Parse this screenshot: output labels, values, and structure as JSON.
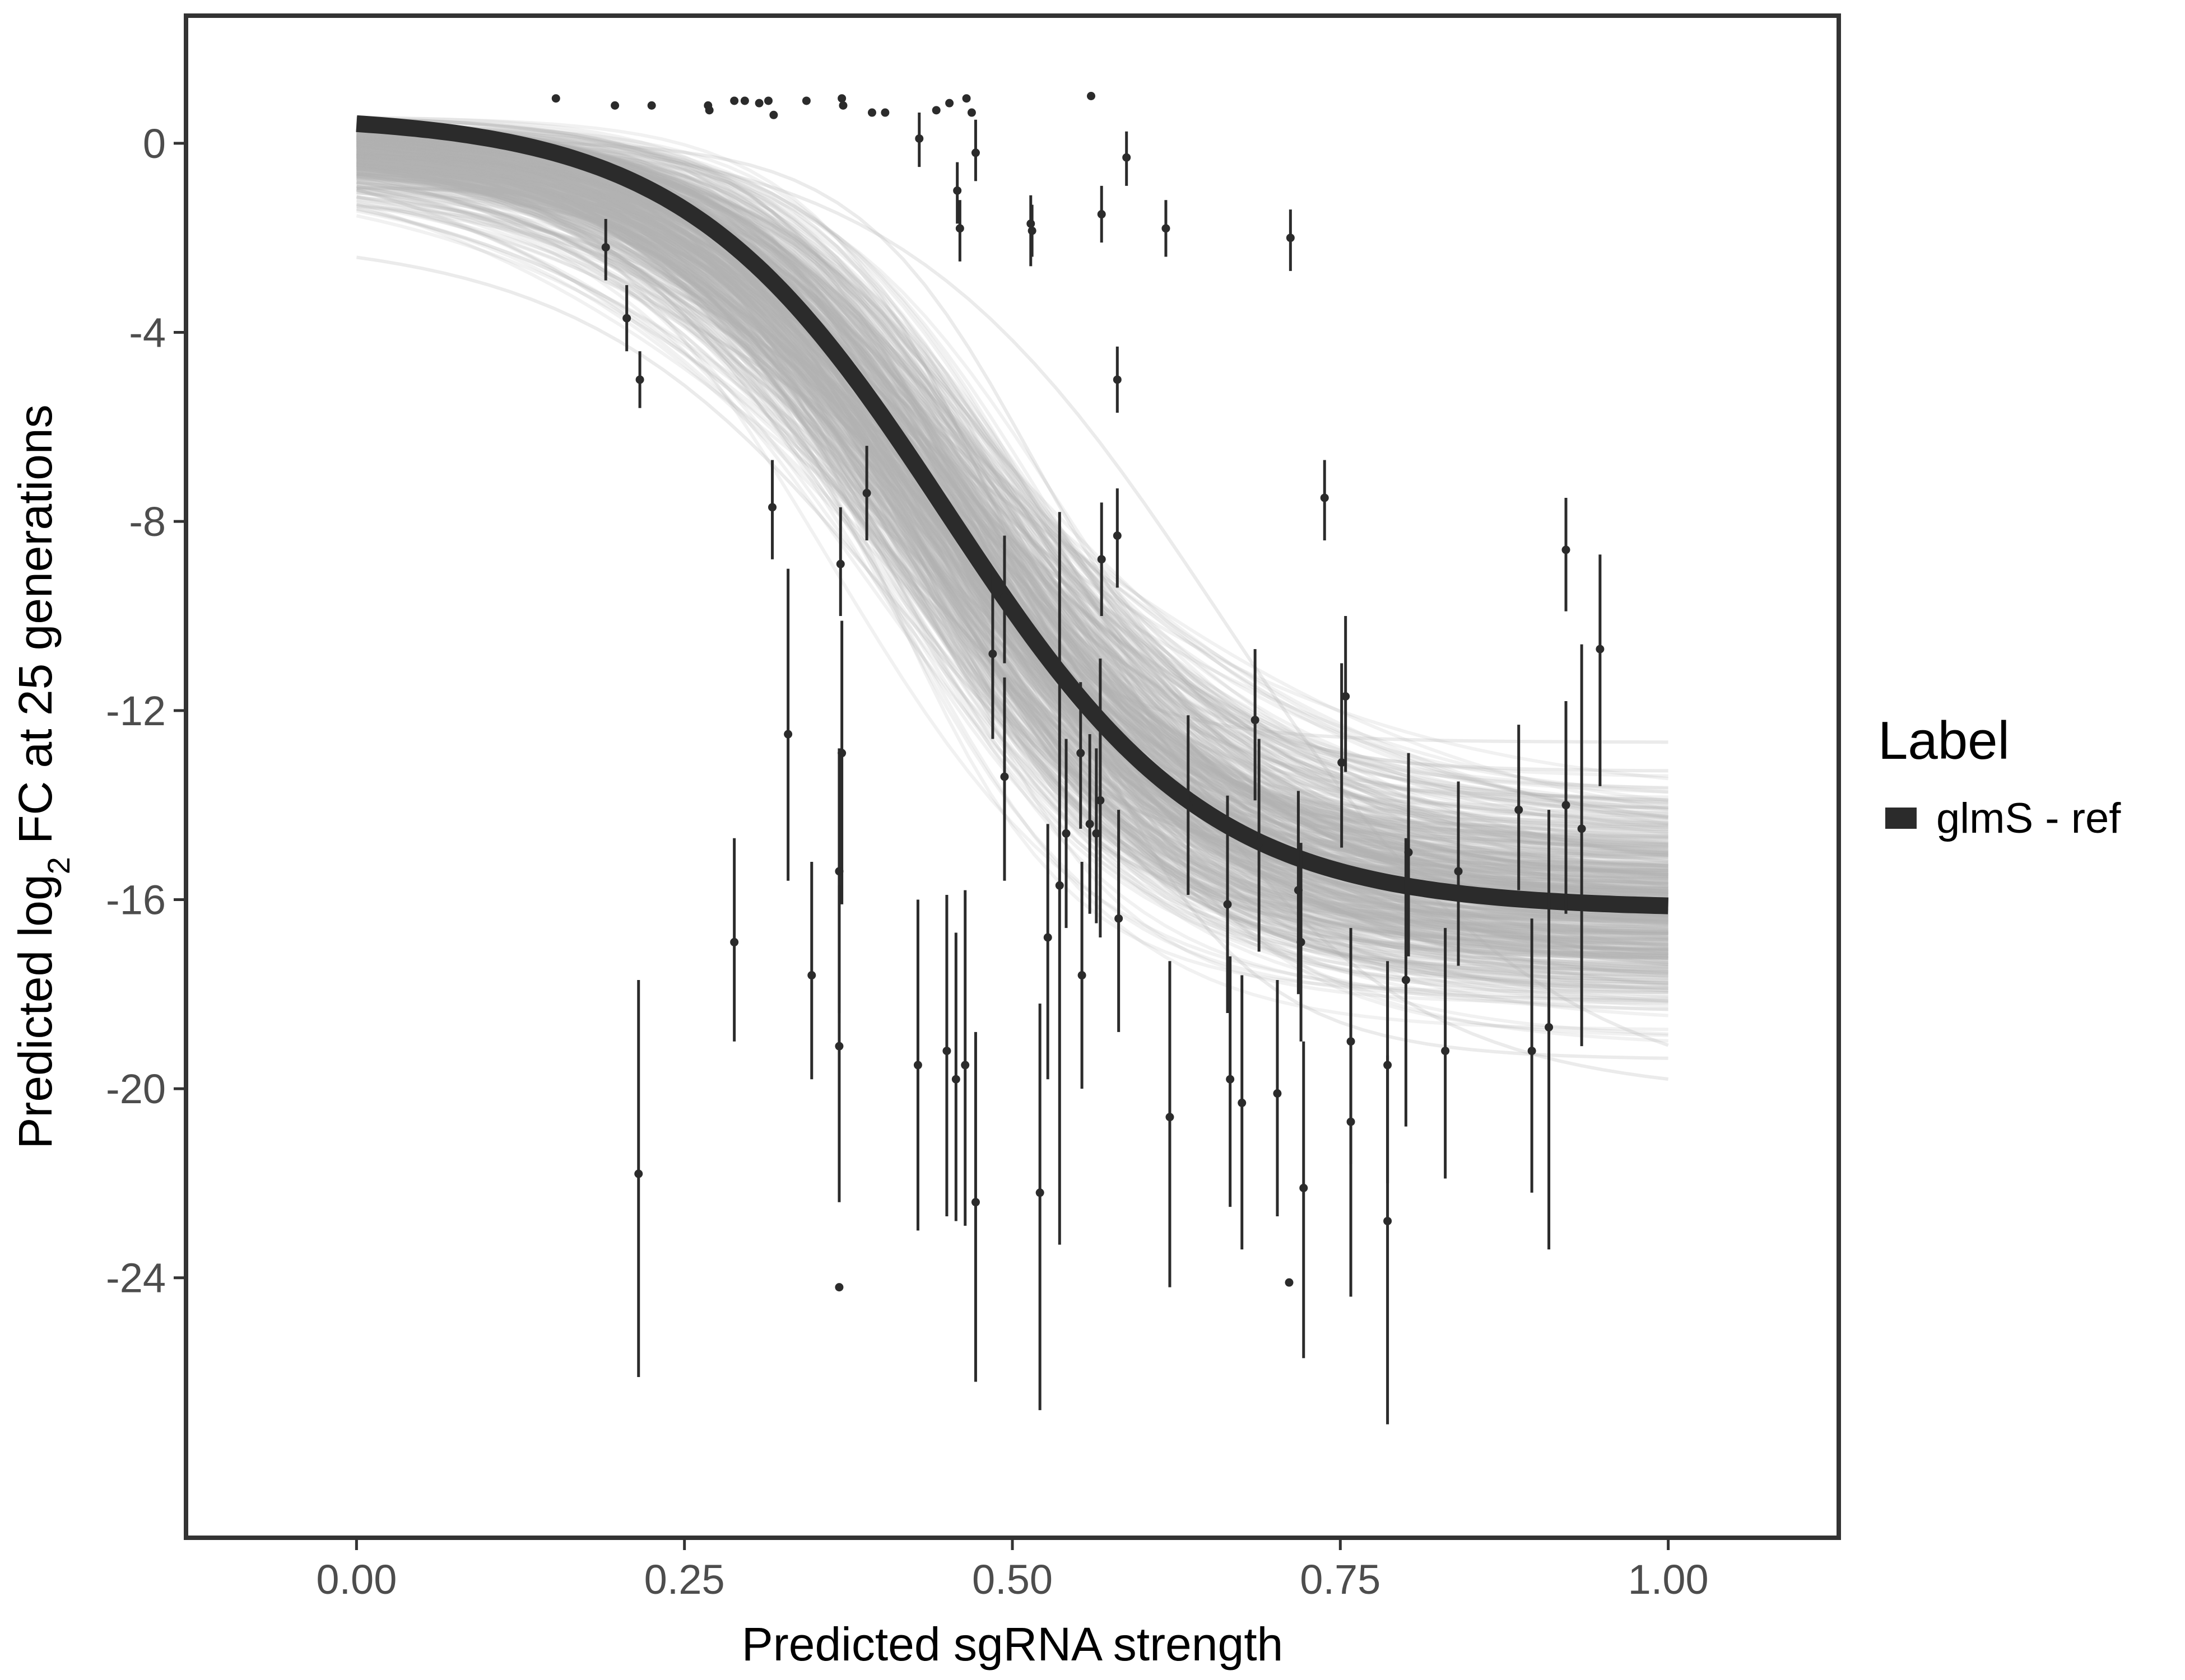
{
  "chart_data": {
    "type": "scatter",
    "xlabel": "Predicted sgRNA strength",
    "ylabel_prefix": "Predicted  log",
    "ylabel_sub": "2",
    "ylabel_suffix": " FC at 25 generations",
    "xlim": [
      -0.13,
      1.13
    ],
    "ylim": [
      -29.5,
      2.7
    ],
    "x_ticks": [
      0,
      0.25,
      0.5,
      0.75,
      1
    ],
    "x_tick_labels": [
      "0.00",
      "0.25",
      "0.50",
      "0.75",
      "1.00"
    ],
    "y_ticks": [
      0,
      -4,
      -8,
      -12,
      -16,
      -20,
      -24
    ],
    "y_tick_labels": [
      "0",
      "-4",
      "-8",
      "-12",
      "-16",
      "-20",
      "-24"
    ],
    "grid": false,
    "legend": {
      "title": "Label",
      "placement": "right",
      "entries": [
        {
          "label": "glmS - ref",
          "color": "#2b2b2b"
        }
      ]
    },
    "fit_curve": {
      "name": "glmS - ref",
      "model": "sigmoid",
      "top": 0.6,
      "bottom": -16.2,
      "midpoint": 0.45,
      "steepness": 10,
      "color": "#2b2b2b"
    },
    "posterior_band": {
      "color": "#b0b0b0",
      "draws": 500,
      "start_range": [
        -6.2,
        0.8
      ],
      "end_range": [
        -20.4,
        -10.7
      ]
    },
    "points": [
      {
        "x": 0.152,
        "y": 0.95
      },
      {
        "x": 0.197,
        "y": 0.8
      },
      {
        "x": 0.225,
        "y": 0.8
      },
      {
        "x": 0.268,
        "y": 0.8
      },
      {
        "x": 0.269,
        "y": 0.7
      },
      {
        "x": 0.288,
        "y": 0.9
      },
      {
        "x": 0.296,
        "y": 0.9
      },
      {
        "x": 0.307,
        "y": 0.85
      },
      {
        "x": 0.314,
        "y": 0.9
      },
      {
        "x": 0.318,
        "y": 0.6
      },
      {
        "x": 0.343,
        "y": 0.9
      },
      {
        "x": 0.37,
        "y": 0.95
      },
      {
        "x": 0.371,
        "y": 0.8
      },
      {
        "x": 0.393,
        "y": 0.65
      },
      {
        "x": 0.403,
        "y": 0.65
      },
      {
        "x": 0.442,
        "y": 0.7
      },
      {
        "x": 0.452,
        "y": 0.85
      },
      {
        "x": 0.465,
        "y": 0.95
      },
      {
        "x": 0.469,
        "y": 0.65
      },
      {
        "x": 0.56,
        "y": 1.0
      },
      {
        "x": 0.19,
        "y": -2.2,
        "lo": -2.9,
        "hi": -1.6
      },
      {
        "x": 0.206,
        "y": -3.7,
        "lo": -4.4,
        "hi": -3.0
      },
      {
        "x": 0.216,
        "y": -5.0,
        "lo": -5.6,
        "hi": -4.4
      },
      {
        "x": 0.215,
        "y": -21.8,
        "lo": -26.1,
        "hi": -17.7
      },
      {
        "x": 0.288,
        "y": -16.9,
        "lo": -19.0,
        "hi": -14.7
      },
      {
        "x": 0.317,
        "y": -7.7,
        "lo": -8.8,
        "hi": -6.7
      },
      {
        "x": 0.329,
        "y": -12.5,
        "lo": -15.6,
        "hi": -9.0
      },
      {
        "x": 0.347,
        "y": -17.6,
        "lo": -19.8,
        "hi": -15.2
      },
      {
        "x": 0.369,
        "y": -8.9,
        "lo": -10.0,
        "hi": -7.7
      },
      {
        "x": 0.37,
        "y": -12.9,
        "lo": -16.1,
        "hi": -10.1
      },
      {
        "x": 0.368,
        "y": -15.4,
        "lo": -18.4,
        "hi": -12.8
      },
      {
        "x": 0.368,
        "y": -19.1,
        "lo": -22.4,
        "hi": -15.7
      },
      {
        "x": 0.368,
        "y": -24.2
      },
      {
        "x": 0.389,
        "y": -7.4,
        "lo": -8.4,
        "hi": -6.4
      },
      {
        "x": 0.429,
        "y": 0.1,
        "lo": -0.5,
        "hi": 0.65
      },
      {
        "x": 0.428,
        "y": -19.5,
        "lo": -23.0,
        "hi": -16.0
      },
      {
        "x": 0.45,
        "y": -19.2,
        "lo": -22.7,
        "hi": -15.9
      },
      {
        "x": 0.458,
        "y": -1.0,
        "lo": -1.7,
        "hi": -0.4
      },
      {
        "x": 0.46,
        "y": -1.8,
        "lo": -2.5,
        "hi": -1.2
      },
      {
        "x": 0.457,
        "y": -19.8,
        "lo": -22.8,
        "hi": -16.7
      },
      {
        "x": 0.464,
        "y": -19.5,
        "lo": -22.9,
        "hi": -15.8
      },
      {
        "x": 0.472,
        "y": -0.2,
        "lo": -0.8,
        "hi": 0.5
      },
      {
        "x": 0.472,
        "y": -22.4,
        "lo": -26.2,
        "hi": -18.8
      },
      {
        "x": 0.485,
        "y": -10.8,
        "lo": -12.6,
        "hi": -9.1
      },
      {
        "x": 0.494,
        "y": -9.6,
        "lo": -11.0,
        "hi": -8.3
      },
      {
        "x": 0.494,
        "y": -13.4,
        "lo": -15.6,
        "hi": -11.3
      },
      {
        "x": 0.514,
        "y": -1.7,
        "lo": -2.6,
        "hi": -1.1
      },
      {
        "x": 0.515,
        "y": -1.85,
        "lo": -2.4,
        "hi": -1.3
      },
      {
        "x": 0.521,
        "y": -22.2,
        "lo": -26.8,
        "hi": -18.2
      },
      {
        "x": 0.527,
        "y": -16.8,
        "lo": -19.8,
        "hi": -14.4
      },
      {
        "x": 0.536,
        "y": -15.7,
        "lo": -23.3,
        "hi": -7.8
      },
      {
        "x": 0.541,
        "y": -14.6,
        "lo": -16.6,
        "hi": -12.6
      },
      {
        "x": 0.552,
        "y": -12.9,
        "lo": -14.5,
        "hi": -11.4
      },
      {
        "x": 0.553,
        "y": -17.6,
        "lo": -20.0,
        "hi": -15.2
      },
      {
        "x": 0.559,
        "y": -14.4,
        "lo": -16.3,
        "hi": -12.5
      },
      {
        "x": 0.564,
        "y": -14.6,
        "lo": -16.5,
        "hi": -12.8
      },
      {
        "x": 0.567,
        "y": -13.9,
        "lo": -16.8,
        "hi": -10.9
      },
      {
        "x": 0.568,
        "y": -1.5,
        "lo": -2.1,
        "hi": -0.9
      },
      {
        "x": 0.568,
        "y": -8.8,
        "lo": -10.0,
        "hi": -7.6
      },
      {
        "x": 0.58,
        "y": -5.0,
        "lo": -5.7,
        "hi": -4.3
      },
      {
        "x": 0.58,
        "y": -8.3,
        "lo": -9.4,
        "hi": -7.3
      },
      {
        "x": 0.581,
        "y": -16.4,
        "lo": -18.8,
        "hi": -14.1
      },
      {
        "x": 0.587,
        "y": -0.3,
        "lo": -0.9,
        "hi": 0.25
      },
      {
        "x": 0.617,
        "y": -1.8,
        "lo": -2.4,
        "hi": -1.2
      },
      {
        "x": 0.62,
        "y": -20.6,
        "lo": -24.2,
        "hi": -17.3
      },
      {
        "x": 0.634,
        "y": -14.0,
        "lo": -15.9,
        "hi": -12.1
      },
      {
        "x": 0.664,
        "y": -16.1,
        "lo": -18.4,
        "hi": -13.8
      },
      {
        "x": 0.666,
        "y": -19.8,
        "lo": -22.5,
        "hi": -17.2
      },
      {
        "x": 0.675,
        "y": -20.3,
        "lo": -23.4,
        "hi": -17.6
      },
      {
        "x": 0.685,
        "y": -12.2,
        "lo": -13.9,
        "hi": -10.7
      },
      {
        "x": 0.688,
        "y": -14.8,
        "lo": -17.1,
        "hi": -12.6
      },
      {
        "x": 0.702,
        "y": -20.1,
        "lo": -22.7,
        "hi": -17.7
      },
      {
        "x": 0.711,
        "y": -24.1
      },
      {
        "x": 0.712,
        "y": -2.0,
        "lo": -2.7,
        "hi": -1.4
      },
      {
        "x": 0.718,
        "y": -15.8,
        "lo": -18.0,
        "hi": -13.7
      },
      {
        "x": 0.72,
        "y": -16.9,
        "lo": -19.0,
        "hi": -14.8
      },
      {
        "x": 0.722,
        "y": -22.1,
        "lo": -25.7,
        "hi": -19.0
      },
      {
        "x": 0.738,
        "y": -7.5,
        "lo": -8.4,
        "hi": -6.7
      },
      {
        "x": 0.751,
        "y": -13.1,
        "lo": -14.9,
        "hi": -11.0
      },
      {
        "x": 0.754,
        "y": -11.7,
        "lo": -13.3,
        "hi": -10.0
      },
      {
        "x": 0.758,
        "y": -19.0,
        "lo": -21.6,
        "hi": -16.6
      },
      {
        "x": 0.758,
        "y": -20.7,
        "lo": -24.4,
        "hi": -17.4
      },
      {
        "x": 0.786,
        "y": -19.5,
        "lo": -22.0,
        "hi": -17.3
      },
      {
        "x": 0.786,
        "y": -22.8,
        "lo": -27.1,
        "hi": -19.3
      },
      {
        "x": 0.8,
        "y": -17.7,
        "lo": -20.8,
        "hi": -14.7
      },
      {
        "x": 0.802,
        "y": -15.0,
        "lo": -17.2,
        "hi": -12.9
      },
      {
        "x": 0.83,
        "y": -19.2,
        "lo": -21.9,
        "hi": -16.6
      },
      {
        "x": 0.84,
        "y": -15.4,
        "lo": -17.4,
        "hi": -13.5
      },
      {
        "x": 0.886,
        "y": -14.1,
        "lo": -15.8,
        "hi": -12.3
      },
      {
        "x": 0.896,
        "y": -19.2,
        "lo": -22.2,
        "hi": -16.4
      },
      {
        "x": 0.909,
        "y": -18.7,
        "lo": -23.4,
        "hi": -14.1
      },
      {
        "x": 0.922,
        "y": -8.6,
        "lo": -9.9,
        "hi": -7.5
      },
      {
        "x": 0.922,
        "y": -14.0,
        "lo": -16.3,
        "hi": -11.8
      },
      {
        "x": 0.934,
        "y": -14.5,
        "lo": -19.1,
        "hi": -10.6
      },
      {
        "x": 0.948,
        "y": -10.7,
        "lo": -13.6,
        "hi": -8.7
      }
    ]
  }
}
